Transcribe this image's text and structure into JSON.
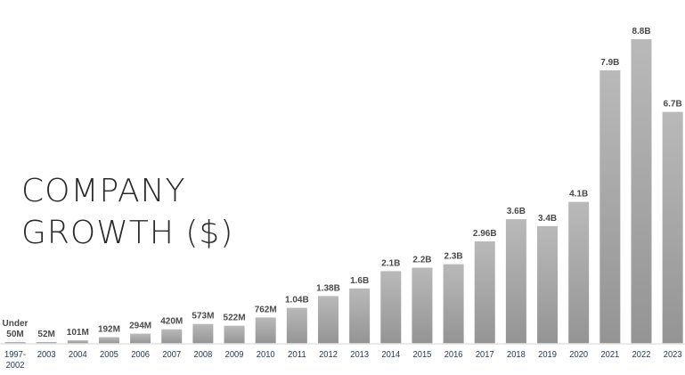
{
  "chart_data": {
    "type": "bar",
    "title_lines": [
      "COMPANY",
      "GROWTH ($)"
    ],
    "categories": [
      "1997-2002",
      "2003",
      "2004",
      "2005",
      "2006",
      "2007",
      "2008",
      "2009",
      "2010",
      "2011",
      "2012",
      "2013",
      "2014",
      "2015",
      "2016",
      "2017",
      "2018",
      "2019",
      "2020",
      "2021",
      "2022",
      "2023"
    ],
    "category_label_lines": [
      [
        "1997-",
        "2002"
      ],
      [
        "2003"
      ],
      [
        "2004"
      ],
      [
        "2005"
      ],
      [
        "2006"
      ],
      [
        "2007"
      ],
      [
        "2008"
      ],
      [
        "2009"
      ],
      [
        "2010"
      ],
      [
        "2011"
      ],
      [
        "2012"
      ],
      [
        "2013"
      ],
      [
        "2014"
      ],
      [
        "2015"
      ],
      [
        "2016"
      ],
      [
        "2017"
      ],
      [
        "2018"
      ],
      [
        "2019"
      ],
      [
        "2020"
      ],
      [
        "2021"
      ],
      [
        "2022"
      ],
      [
        "2023"
      ]
    ],
    "values": [
      0.05,
      0.052,
      0.101,
      0.192,
      0.294,
      0.42,
      0.573,
      0.522,
      0.762,
      1.04,
      1.38,
      1.6,
      2.1,
      2.2,
      2.3,
      2.96,
      3.6,
      3.4,
      4.1,
      7.9,
      8.8,
      6.7
    ],
    "value_labels": [
      [
        "Under",
        "50M"
      ],
      [
        "52M"
      ],
      [
        "101M"
      ],
      [
        "192M"
      ],
      [
        "294M"
      ],
      [
        "420M"
      ],
      [
        "573M"
      ],
      [
        "522M"
      ],
      [
        "762M"
      ],
      [
        "1.04B"
      ],
      [
        "1.38B"
      ],
      [
        "1.6B"
      ],
      [
        "2.1B"
      ],
      [
        "2.2B"
      ],
      [
        "2.3B"
      ],
      [
        "2.96B"
      ],
      [
        "3.6B"
      ],
      [
        "3.4B"
      ],
      [
        "4.1B"
      ],
      [
        "7.9B"
      ],
      [
        "8.8B"
      ],
      [
        "6.7B"
      ]
    ],
    "units": "billions USD",
    "ylim": [
      0,
      8.8
    ],
    "grid": false,
    "legend": "none",
    "colors": {
      "bar_top": "#b9b9b9",
      "bar_bottom": "#949494",
      "baseline": "#e3e3e3",
      "value_label": "#4a4a4a",
      "year_label": "#1f3557",
      "title": "#2a2a2a"
    }
  }
}
